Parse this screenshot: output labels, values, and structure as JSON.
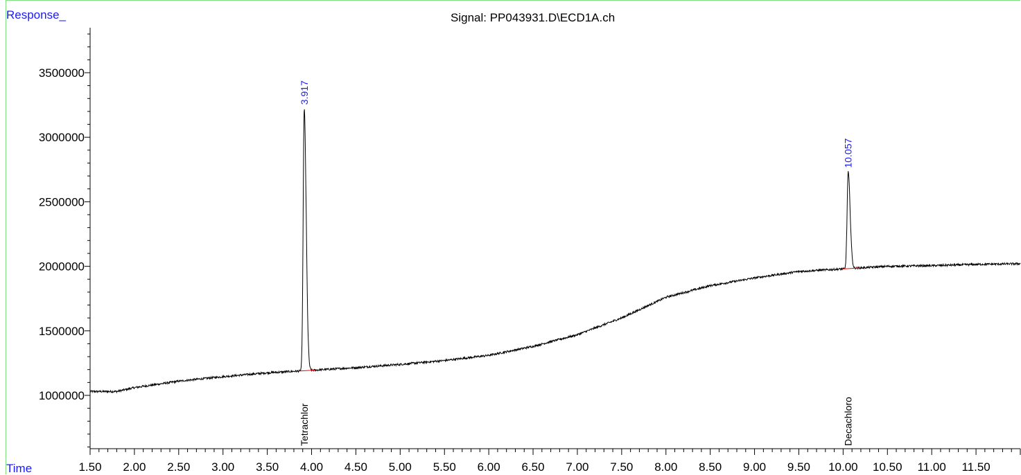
{
  "chart_data": {
    "type": "line",
    "title": "Signal: PP043931.D\\ECD1A.ch",
    "ylabel": "Response_",
    "xlabel": "Time",
    "xlim": [
      1.5,
      12.0
    ],
    "ylim": [
      550000,
      3850000
    ],
    "x_ticks": [
      "1.50",
      "2.00",
      "2.50",
      "3.00",
      "3.50",
      "4.00",
      "4.50",
      "5.00",
      "5.50",
      "6.00",
      "6.50",
      "7.00",
      "7.50",
      "8.00",
      "8.50",
      "9.00",
      "9.50",
      "10.00",
      "10.50",
      "11.00",
      "11.50"
    ],
    "y_ticks": [
      "1000000",
      "1500000",
      "2000000",
      "2500000",
      "3000000",
      "3500000"
    ],
    "grid": false,
    "series": [
      {
        "color": "#000000",
        "baseline_points": [
          [
            1.5,
            1030000
          ],
          [
            1.8,
            1030000
          ],
          [
            2.0,
            1060000
          ],
          [
            2.5,
            1110000
          ],
          [
            3.0,
            1145000
          ],
          [
            3.5,
            1175000
          ],
          [
            3.9,
            1190000
          ],
          [
            4.5,
            1215000
          ],
          [
            5.0,
            1240000
          ],
          [
            5.5,
            1270000
          ],
          [
            6.0,
            1310000
          ],
          [
            6.5,
            1380000
          ],
          [
            7.0,
            1470000
          ],
          [
            7.5,
            1600000
          ],
          [
            8.0,
            1760000
          ],
          [
            8.5,
            1850000
          ],
          [
            9.0,
            1910000
          ],
          [
            9.5,
            1960000
          ],
          [
            10.0,
            1980000
          ],
          [
            10.5,
            2000000
          ],
          [
            11.0,
            2005000
          ],
          [
            11.5,
            2015000
          ],
          [
            12.0,
            2020000
          ]
        ],
        "peaks": [
          {
            "rt": 3.917,
            "height": 3220000,
            "rt_label": "3.917",
            "compound": "Tetrachlor"
          },
          {
            "rt": 10.057,
            "height": 2730000,
            "rt_label": "10.057",
            "compound": "Decachloro"
          }
        ]
      }
    ],
    "peak_label_color": "#1a1aff",
    "integration_baseline_color": "#ff0000"
  }
}
